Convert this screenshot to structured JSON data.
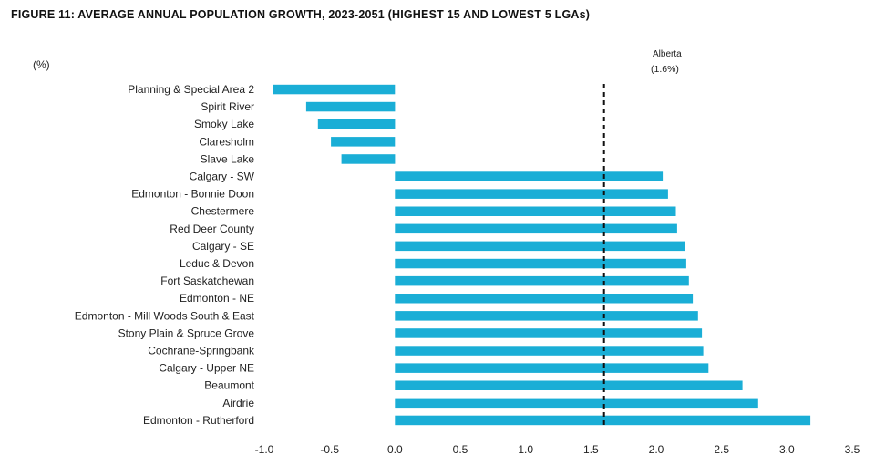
{
  "chart_data": {
    "type": "bar",
    "orientation": "horizontal",
    "title": "FIGURE 11: AVERAGE ANNUAL POPULATION GROWTH, 2023-2051 (HIGHEST 15 AND LOWEST 5 LGAs)",
    "ylabel": "(%)",
    "xlabel": "",
    "xlim": [
      -1.0,
      3.5
    ],
    "xticks": [
      "-1.0",
      "-0.5",
      "0.0",
      "0.5",
      "1.0",
      "1.5",
      "2.0",
      "2.5",
      "3.0",
      "3.5"
    ],
    "grid": false,
    "bar_color": "#1aaed6",
    "categories": [
      "Planning & Special Area 2",
      "Spirit River",
      "Smoky Lake",
      "Claresholm",
      "Slave Lake",
      "Calgary - SW",
      "Edmonton - Bonnie Doon",
      "Chestermere",
      "Red Deer County",
      "Calgary - SE",
      "Leduc & Devon",
      "Fort Saskatchewan",
      "Edmonton - NE",
      "Edmonton - Mill Woods South & East",
      "Stony Plain & Spruce Grove",
      "Cochrane-Springbank",
      "Calgary - Upper NE",
      "Beaumont",
      "Airdrie",
      "Edmonton - Rutherford"
    ],
    "values": [
      -0.93,
      -0.68,
      -0.59,
      -0.49,
      -0.41,
      2.05,
      2.09,
      2.15,
      2.16,
      2.22,
      2.23,
      2.25,
      2.28,
      2.32,
      2.35,
      2.36,
      2.4,
      2.66,
      2.78,
      3.18
    ],
    "reference_line": {
      "value": 1.6,
      "label_line1": "Alberta",
      "label_line2": "(1.6%)",
      "style": "dashed"
    }
  }
}
